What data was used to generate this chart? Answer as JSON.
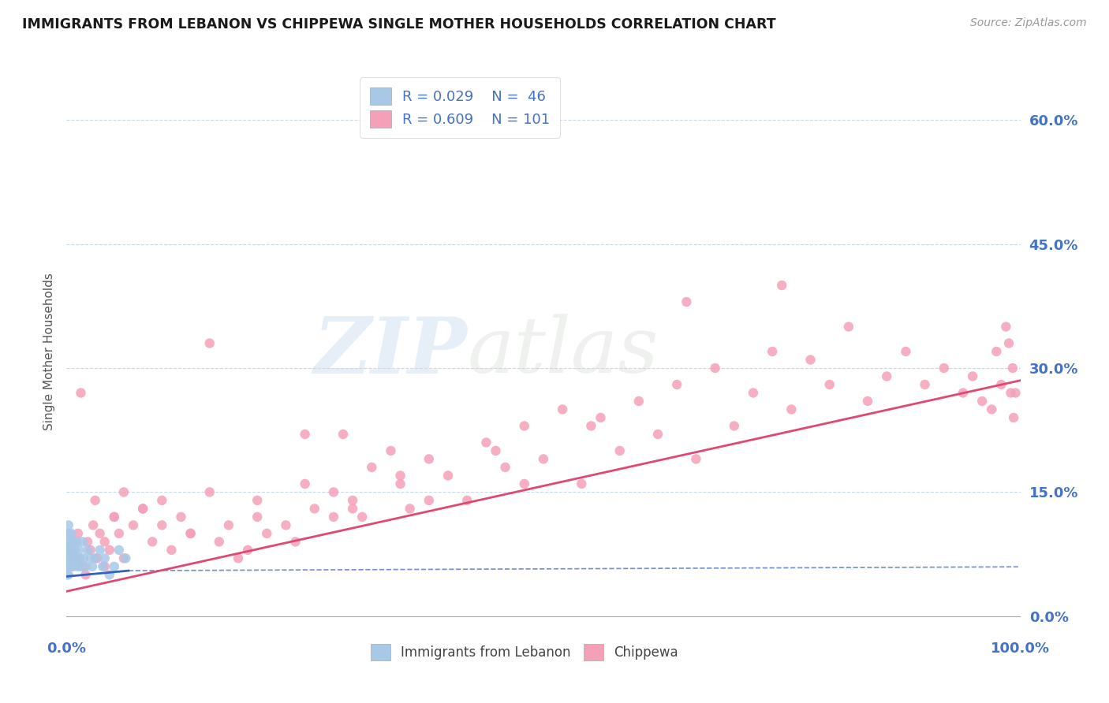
{
  "title": "IMMIGRANTS FROM LEBANON VS CHIPPEWA SINGLE MOTHER HOUSEHOLDS CORRELATION CHART",
  "source": "Source: ZipAtlas.com",
  "ylabel": "Single Mother Households",
  "legend_labels": [
    "Immigrants from Lebanon",
    "Chippewa"
  ],
  "r_values": [
    0.029,
    0.609
  ],
  "n_values": [
    46,
    101
  ],
  "scatter_color_leb": "#a8c8e8",
  "scatter_color_chip": "#f4a0b8",
  "line_color_leb": "#3060c0",
  "line_color_chip": "#e04870",
  "bg_color": "#ffffff",
  "grid_color": "#c8d8ec",
  "title_color": "#1a1a1a",
  "axis_tick_color": "#4472c4",
  "r_text_color": "#4472c4",
  "xlim": [
    0.0,
    1.0
  ],
  "ylim": [
    -0.02,
    0.66
  ],
  "yticks": [
    0.0,
    0.15,
    0.3,
    0.45,
    0.6
  ],
  "ytick_labels": [
    "0.0%",
    "15.0%",
    "30.0%",
    "45.0%",
    "60.0%"
  ],
  "xticks": [
    0.0,
    1.0
  ],
  "xtick_labels": [
    "0.0%",
    "100.0%"
  ],
  "leb_trend_x": [
    0.0,
    0.065
  ],
  "leb_trend_y": [
    0.048,
    0.055
  ],
  "chip_trend_x": [
    0.0,
    1.0
  ],
  "chip_trend_y": [
    0.03,
    0.285
  ],
  "lebanon_x": [
    0.0002,
    0.0003,
    0.0005,
    0.0007,
    0.001,
    0.001,
    0.001,
    0.0015,
    0.002,
    0.002,
    0.002,
    0.002,
    0.003,
    0.003,
    0.003,
    0.004,
    0.004,
    0.004,
    0.005,
    0.005,
    0.006,
    0.006,
    0.007,
    0.007,
    0.008,
    0.009,
    0.01,
    0.011,
    0.012,
    0.013,
    0.014,
    0.015,
    0.017,
    0.018,
    0.02,
    0.022,
    0.025,
    0.027,
    0.03,
    0.035,
    0.038,
    0.04,
    0.045,
    0.05,
    0.055,
    0.062
  ],
  "lebanon_y": [
    0.06,
    0.05,
    0.09,
    0.07,
    0.08,
    0.1,
    0.06,
    0.09,
    0.07,
    0.08,
    0.11,
    0.05,
    0.08,
    0.1,
    0.06,
    0.09,
    0.07,
    0.08,
    0.06,
    0.1,
    0.09,
    0.07,
    0.08,
    0.06,
    0.09,
    0.08,
    0.07,
    0.09,
    0.06,
    0.08,
    0.07,
    0.06,
    0.09,
    0.07,
    0.06,
    0.08,
    0.07,
    0.06,
    0.07,
    0.08,
    0.06,
    0.07,
    0.05,
    0.06,
    0.08,
    0.07
  ],
  "chippewa_x": [
    0.003,
    0.007,
    0.012,
    0.015,
    0.018,
    0.022,
    0.025,
    0.028,
    0.032,
    0.035,
    0.04,
    0.045,
    0.05,
    0.055,
    0.06,
    0.07,
    0.08,
    0.09,
    0.1,
    0.11,
    0.12,
    0.13,
    0.15,
    0.16,
    0.17,
    0.19,
    0.2,
    0.21,
    0.23,
    0.24,
    0.25,
    0.26,
    0.28,
    0.29,
    0.3,
    0.31,
    0.32,
    0.34,
    0.35,
    0.36,
    0.38,
    0.4,
    0.42,
    0.44,
    0.46,
    0.48,
    0.5,
    0.52,
    0.54,
    0.56,
    0.58,
    0.6,
    0.62,
    0.64,
    0.66,
    0.68,
    0.7,
    0.72,
    0.74,
    0.76,
    0.78,
    0.8,
    0.82,
    0.84,
    0.86,
    0.88,
    0.9,
    0.92,
    0.94,
    0.95,
    0.96,
    0.97,
    0.975,
    0.98,
    0.985,
    0.988,
    0.99,
    0.992,
    0.993,
    0.995,
    0.03,
    0.06,
    0.1,
    0.2,
    0.3,
    0.05,
    0.15,
    0.25,
    0.35,
    0.45,
    0.55,
    0.65,
    0.75,
    0.02,
    0.04,
    0.08,
    0.13,
    0.18,
    0.28,
    0.38,
    0.48
  ],
  "chippewa_y": [
    0.08,
    0.07,
    0.1,
    0.27,
    0.06,
    0.09,
    0.08,
    0.11,
    0.07,
    0.1,
    0.09,
    0.08,
    0.12,
    0.1,
    0.07,
    0.11,
    0.13,
    0.09,
    0.14,
    0.08,
    0.12,
    0.1,
    0.33,
    0.09,
    0.11,
    0.08,
    0.12,
    0.1,
    0.11,
    0.09,
    0.16,
    0.13,
    0.15,
    0.22,
    0.14,
    0.12,
    0.18,
    0.2,
    0.16,
    0.13,
    0.19,
    0.17,
    0.14,
    0.21,
    0.18,
    0.23,
    0.19,
    0.25,
    0.16,
    0.24,
    0.2,
    0.26,
    0.22,
    0.28,
    0.19,
    0.3,
    0.23,
    0.27,
    0.32,
    0.25,
    0.31,
    0.28,
    0.35,
    0.26,
    0.29,
    0.32,
    0.28,
    0.3,
    0.27,
    0.29,
    0.26,
    0.25,
    0.32,
    0.28,
    0.35,
    0.33,
    0.27,
    0.3,
    0.24,
    0.27,
    0.14,
    0.15,
    0.11,
    0.14,
    0.13,
    0.12,
    0.15,
    0.22,
    0.17,
    0.2,
    0.23,
    0.38,
    0.4,
    0.05,
    0.06,
    0.13,
    0.1,
    0.07,
    0.12,
    0.14,
    0.16
  ]
}
